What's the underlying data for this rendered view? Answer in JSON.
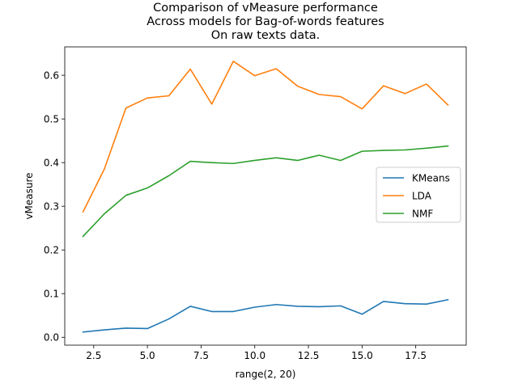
{
  "chart_data": {
    "type": "line",
    "title": [
      "Comparison of vMeasure performance",
      "Across models for Bag-of-words features",
      "On raw texts data."
    ],
    "xlabel": "range(2, 20)",
    "ylabel": "vMeasure",
    "x": [
      2,
      3,
      4,
      5,
      6,
      7,
      8,
      9,
      10,
      11,
      12,
      13,
      14,
      15,
      16,
      17,
      18,
      19
    ],
    "xlim": [
      1.15,
      19.85
    ],
    "ylim": [
      -0.018,
      0.665
    ],
    "xticks": [
      2.5,
      5.0,
      7.5,
      10.0,
      12.5,
      15.0,
      17.5
    ],
    "xtick_labels": [
      "2.5",
      "5.0",
      "7.5",
      "10.0",
      "12.5",
      "15.0",
      "17.5"
    ],
    "yticks": [
      0.0,
      0.1,
      0.2,
      0.3,
      0.4,
      0.5,
      0.6
    ],
    "ytick_labels": [
      "0.0",
      "0.1",
      "0.2",
      "0.3",
      "0.4",
      "0.5",
      "0.6"
    ],
    "grid": false,
    "legend_position": "center-right",
    "series": [
      {
        "name": "KMeans",
        "color": "#1f77b4",
        "values": [
          0.012,
          0.017,
          0.021,
          0.02,
          0.042,
          0.071,
          0.059,
          0.059,
          0.069,
          0.075,
          0.071,
          0.07,
          0.072,
          0.053,
          0.082,
          0.077,
          0.076,
          0.086
        ]
      },
      {
        "name": "LDA",
        "color": "#ff7f0e",
        "values": [
          0.287,
          0.386,
          0.525,
          0.548,
          0.553,
          0.614,
          0.534,
          0.632,
          0.599,
          0.615,
          0.575,
          0.556,
          0.551,
          0.523,
          0.576,
          0.558,
          0.58,
          0.532
        ]
      },
      {
        "name": "NMF",
        "color": "#2ca02c",
        "values": [
          0.231,
          0.283,
          0.325,
          0.342,
          0.37,
          0.403,
          0.4,
          0.398,
          0.405,
          0.411,
          0.405,
          0.417,
          0.405,
          0.426,
          0.428,
          0.429,
          0.433,
          0.438
        ]
      }
    ]
  }
}
